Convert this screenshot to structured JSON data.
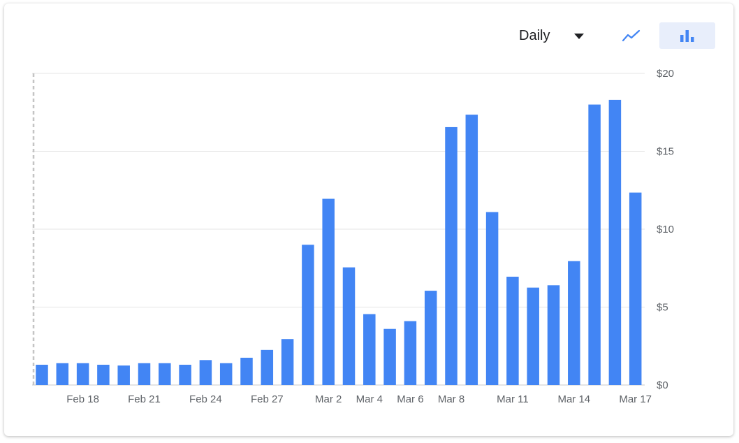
{
  "toolbar": {
    "period": "Daily",
    "views": [
      {
        "id": "line",
        "icon": "line-chart-icon",
        "selected": false
      },
      {
        "id": "bar",
        "icon": "bar-chart-icon",
        "selected": true
      }
    ],
    "accent_color": "#4285f4",
    "selected_bg": "#e8eefb"
  },
  "chart_data": {
    "type": "bar",
    "title": "",
    "xlabel": "",
    "ylabel": "",
    "ylim": [
      0,
      20
    ],
    "y_ticks": [
      0,
      5,
      10,
      15,
      20
    ],
    "y_tick_labels": [
      "$0",
      "$5",
      "$10",
      "$15",
      "$20"
    ],
    "grid": true,
    "bar_color": "#4285f4",
    "categories": [
      "Feb 16",
      "Feb 17",
      "Feb 18",
      "Feb 19",
      "Feb 20",
      "Feb 21",
      "Feb 22",
      "Feb 23",
      "Feb 24",
      "Feb 25",
      "Feb 26",
      "Feb 27",
      "Feb 28",
      "Mar 1",
      "Mar 2",
      "Mar 3",
      "Mar 4",
      "Mar 5",
      "Mar 6",
      "Mar 7",
      "Mar 8",
      "Mar 9",
      "Mar 10",
      "Mar 11",
      "Mar 12",
      "Mar 13",
      "Mar 14",
      "Mar 15",
      "Mar 16",
      "Mar 17"
    ],
    "values": [
      1.3,
      1.4,
      1.4,
      1.3,
      1.25,
      1.4,
      1.4,
      1.3,
      1.6,
      1.4,
      1.75,
      2.25,
      2.95,
      9.0,
      11.95,
      7.55,
      4.55,
      3.6,
      4.1,
      6.05,
      16.55,
      17.35,
      11.1,
      6.95,
      6.25,
      6.4,
      7.95,
      18.0,
      18.3,
      12.35
    ],
    "x_tick_labels": [
      {
        "index": 2,
        "label": "Feb 18"
      },
      {
        "index": 5,
        "label": "Feb 21"
      },
      {
        "index": 8,
        "label": "Feb 24"
      },
      {
        "index": 11,
        "label": "Feb 27"
      },
      {
        "index": 14,
        "label": "Mar 2"
      },
      {
        "index": 16,
        "label": "Mar 4"
      },
      {
        "index": 18,
        "label": "Mar 6"
      },
      {
        "index": 20,
        "label": "Mar 8"
      },
      {
        "index": 23,
        "label": "Mar 11"
      },
      {
        "index": 26,
        "label": "Mar 14"
      },
      {
        "index": 29,
        "label": "Mar 17"
      }
    ]
  }
}
